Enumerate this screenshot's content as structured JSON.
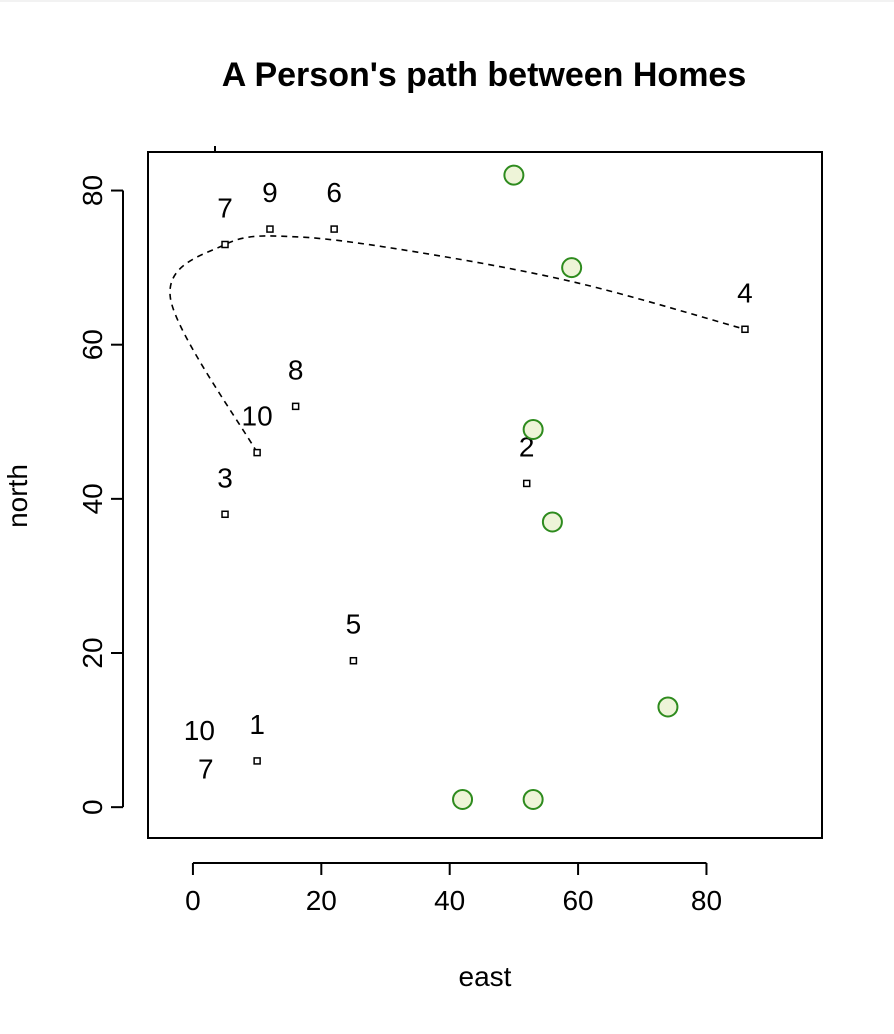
{
  "chart_data": {
    "type": "scatter",
    "title": "A Person's path between Homes",
    "xlabel": "east",
    "ylabel": "north",
    "xlim": [
      -7,
      98
    ],
    "ylim": [
      -4,
      85
    ],
    "xticks": [
      0,
      20,
      40,
      60,
      80
    ],
    "yticks": [
      0,
      20,
      40,
      60,
      80
    ],
    "grid": false,
    "legend": "none",
    "series": [
      {
        "marker": "small-square",
        "color": "#000000",
        "points": [
          {
            "x": 10,
            "y": 6,
            "label": "1"
          },
          {
            "x": 52,
            "y": 42,
            "label": "2"
          },
          {
            "x": 5,
            "y": 38,
            "label": "3"
          },
          {
            "x": 86,
            "y": 62,
            "label": "4"
          },
          {
            "x": 25,
            "y": 19,
            "label": "5"
          },
          {
            "x": 22,
            "y": 75,
            "label": "6"
          },
          {
            "x": 5,
            "y": 73,
            "label": "7"
          },
          {
            "x": 16,
            "y": 52,
            "label": "8"
          },
          {
            "x": 12,
            "y": 75,
            "label": "9"
          },
          {
            "x": 10,
            "y": 46,
            "label": "10"
          }
        ]
      },
      {
        "marker": "circle",
        "color": "#2e8b1e",
        "fill": "#eef4d8",
        "points": [
          {
            "x": 50,
            "y": 82
          },
          {
            "x": 59,
            "y": 70
          },
          {
            "x": 53,
            "y": 49
          },
          {
            "x": 56,
            "y": 37
          },
          {
            "x": 74,
            "y": 13
          },
          {
            "x": 42,
            "y": 1
          },
          {
            "x": 53,
            "y": 1
          }
        ]
      }
    ],
    "free_labels": [
      {
        "x": 1,
        "y": 10,
        "text": "10"
      },
      {
        "x": 2,
        "y": 5,
        "text": "7"
      }
    ],
    "path": {
      "style": "dashed",
      "points": [
        {
          "x": 10,
          "y": 46
        },
        {
          "x": -3.5,
          "y": 66
        },
        {
          "x": 5,
          "y": 73
        },
        {
          "x": 16,
          "y": 74
        },
        {
          "x": 35,
          "y": 72
        },
        {
          "x": 60,
          "y": 68
        },
        {
          "x": 86,
          "y": 62
        }
      ]
    }
  }
}
